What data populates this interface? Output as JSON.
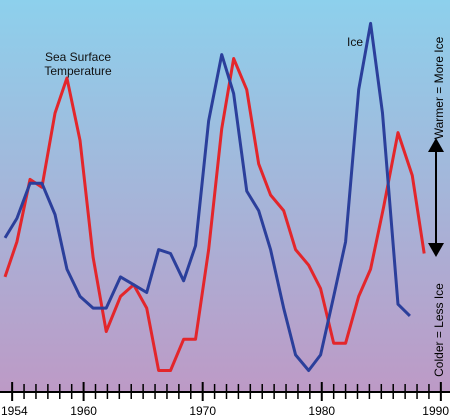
{
  "chart_data": {
    "type": "line",
    "xlim": [
      1953.4,
      1990.6
    ],
    "ylim": [
      0,
      100
    ],
    "xticks": [
      1954,
      1960,
      1970,
      1980,
      1990
    ],
    "xminorticks": [
      1955,
      1956,
      1957,
      1958,
      1959,
      1961,
      1962,
      1963,
      1964,
      1965,
      1966,
      1967,
      1968,
      1969,
      1971,
      1972,
      1973,
      1974,
      1975,
      1976,
      1977,
      1978,
      1979,
      1981,
      1982,
      1983,
      1984,
      1985,
      1986,
      1987,
      1988,
      1989
    ],
    "y_label_top": "Warmer = More Ice",
    "y_label_bottom": "Colder = Less Ice",
    "series": [
      {
        "name": "Sea Surface Temperature",
        "color": "#e3262b",
        "x": [
          1953.4,
          1954.4,
          1955.5,
          1956.5,
          1957.6,
          1958.6,
          1959.7,
          1960.8,
          1961.9,
          1963.1,
          1964.2,
          1965.3,
          1966.3,
          1967.3,
          1968.4,
          1969.4,
          1970.5,
          1971.6,
          1972.6,
          1973.7,
          1974.7,
          1975.7,
          1976.8,
          1977.8,
          1978.9,
          1979.9,
          1981.0,
          1982.0,
          1983.1,
          1984.1,
          1985.2,
          1986.4,
          1987.6,
          1988.6
        ],
        "values": [
          29,
          38,
          54,
          52,
          71,
          80,
          64,
          34,
          15,
          24,
          27,
          21,
          5,
          5,
          13,
          13,
          36,
          67,
          85,
          77,
          58,
          50,
          46,
          36,
          32,
          26,
          12,
          12,
          24,
          31,
          47,
          66,
          55,
          35
        ]
      },
      {
        "name": "Ice",
        "color": "#2b3f9b",
        "x": [
          1953.4,
          1954.4,
          1955.5,
          1956.5,
          1957.6,
          1958.6,
          1959.7,
          1960.8,
          1961.9,
          1963.1,
          1964.2,
          1965.3,
          1966.3,
          1967.3,
          1968.4,
          1969.4,
          1970.5,
          1971.6,
          1972.6,
          1973.7,
          1974.7,
          1975.7,
          1976.8,
          1977.8,
          1978.9,
          1979.9,
          1981.0,
          1982.0,
          1983.1,
          1984.1,
          1985.1,
          1986.4,
          1987.4
        ],
        "values": [
          39,
          44,
          53,
          53,
          45,
          31,
          24,
          21,
          21,
          29,
          27,
          25,
          36,
          35,
          28,
          37,
          69,
          86,
          76,
          51,
          46,
          36,
          21,
          9,
          5,
          9,
          24,
          38,
          77,
          94,
          71,
          22,
          19
        ]
      }
    ]
  }
}
